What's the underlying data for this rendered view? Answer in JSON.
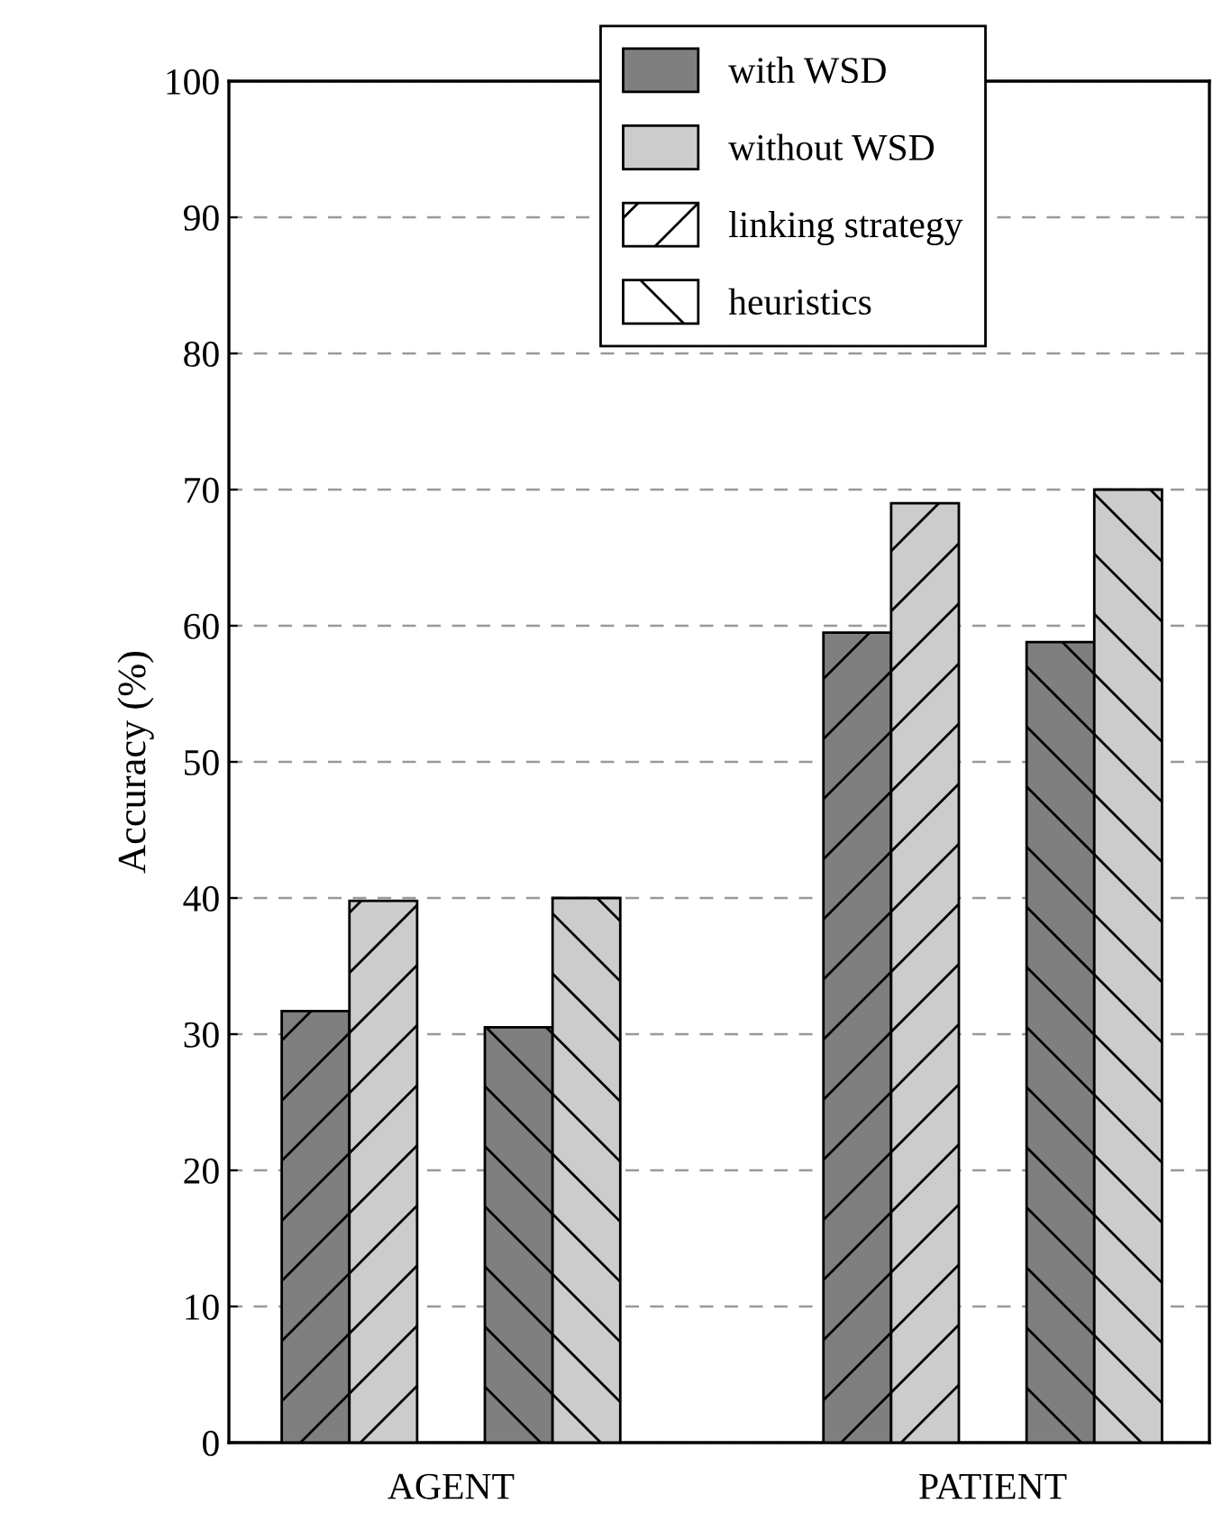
{
  "chart_data": {
    "type": "bar",
    "ylabel": "Accuracy (%)",
    "categories": [
      "AGENT",
      "PATIENT"
    ],
    "series": [
      {
        "name": "with WSD",
        "color": "#7f7f7f",
        "values": [
          31.7,
          59.5
        ]
      },
      {
        "name": "without WSD",
        "color": "#cccccc",
        "values": [
          39.8,
          69.0
        ]
      },
      {
        "color": "#7f7f7f",
        "values": [
          30.5,
          58.8
        ]
      },
      {
        "color": "#cccccc",
        "values": [
          40.0,
          70.0
        ]
      }
    ],
    "annotations": [
      "linking strategy",
      "heuristics"
    ],
    "ylim": [
      0,
      100
    ],
    "yticks": [
      0,
      10,
      20,
      30,
      40,
      50,
      60,
      70,
      80,
      90,
      100
    ],
    "grid": "y",
    "legend": "top"
  }
}
